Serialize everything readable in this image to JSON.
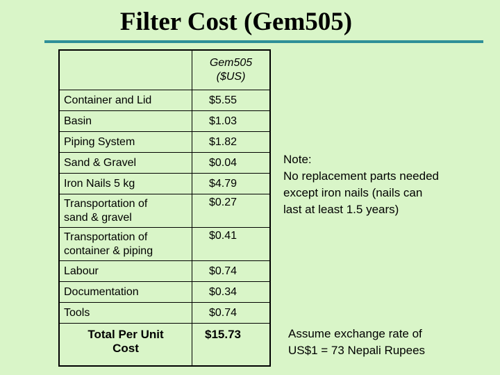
{
  "title": "Filter Cost (Gem505)",
  "table": {
    "header": {
      "col1": "",
      "col2_line1": "Gem505",
      "col2_line2": "($US)"
    },
    "rows": [
      {
        "item": "Container and Lid",
        "cost": "$5.55"
      },
      {
        "item": "Basin",
        "cost": "$1.03"
      },
      {
        "item": "Piping System",
        "cost": "$1.82"
      },
      {
        "item": "Sand & Gravel",
        "cost": "$0.04"
      },
      {
        "item": "Iron Nails 5 kg",
        "cost": "$4.79"
      },
      {
        "item_line1": "Transportation of",
        "item_line2": "sand & gravel",
        "cost": "$0.27"
      },
      {
        "item_line1": "Transportation of",
        "item_line2": "container & piping",
        "cost": "$0.41"
      },
      {
        "item": "Labour",
        "cost": "$0.74"
      },
      {
        "item": "Documentation",
        "cost": "$0.34"
      },
      {
        "item": "Tools",
        "cost": "$0.74"
      }
    ],
    "total": {
      "label_line1": "Total Per Unit",
      "label_line2": "Cost",
      "cost": "$15.73"
    }
  },
  "note": {
    "line1": "Note:",
    "line2": "No replacement parts needed",
    "line3": "except iron nails (nails can",
    "line4": "last at least 1.5 years)"
  },
  "exchange": {
    "line1": "Assume exchange rate of",
    "line2": "US$1 = 73 Nepali Rupees"
  },
  "colors": {
    "background": "#d9f5c8",
    "title_rule": "#2f8f98"
  }
}
